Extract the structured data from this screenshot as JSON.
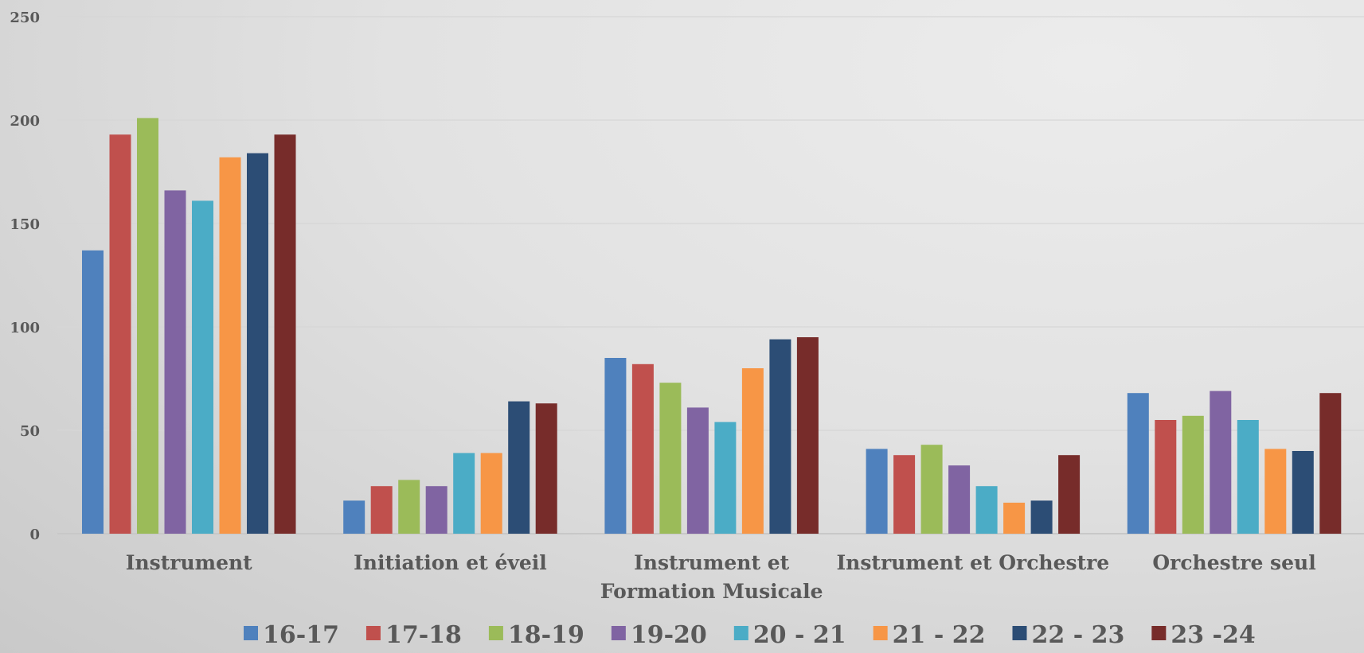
{
  "chart_data": {
    "type": "bar",
    "title": "",
    "xlabel": "",
    "ylabel": "",
    "ylim": [
      0,
      250
    ],
    "yticks": [
      0,
      50,
      100,
      150,
      200,
      250
    ],
    "grid": true,
    "legend_position": "bottom",
    "categories": [
      [
        "Instrument"
      ],
      [
        "Initiation et éveil"
      ],
      [
        "Instrument et",
        "Formation Musicale"
      ],
      [
        "Instrument et Orchestre"
      ],
      [
        "Orchestre seul"
      ]
    ],
    "series": [
      {
        "name": "16-17",
        "color": "#4F81BD",
        "values": [
          137,
          16,
          85,
          41,
          68
        ]
      },
      {
        "name": "17-18",
        "color": "#C0504D",
        "values": [
          193,
          23,
          82,
          38,
          55
        ]
      },
      {
        "name": "18-19",
        "color": "#9BBB59",
        "values": [
          201,
          26,
          73,
          43,
          57
        ]
      },
      {
        "name": "19-20",
        "color": "#8064A2",
        "values": [
          166,
          23,
          61,
          33,
          69
        ]
      },
      {
        "name": "20 - 21",
        "color": "#4BACC6",
        "values": [
          161,
          39,
          54,
          23,
          55
        ]
      },
      {
        "name": "21 - 22",
        "color": "#F79646",
        "values": [
          182,
          39,
          80,
          15,
          41
        ]
      },
      {
        "name": "22 - 23",
        "color": "#2C4D75",
        "values": [
          184,
          64,
          94,
          16,
          40
        ]
      },
      {
        "name": "23 -24",
        "color": "#772C2A",
        "values": [
          193,
          63,
          95,
          38,
          68
        ]
      }
    ]
  }
}
